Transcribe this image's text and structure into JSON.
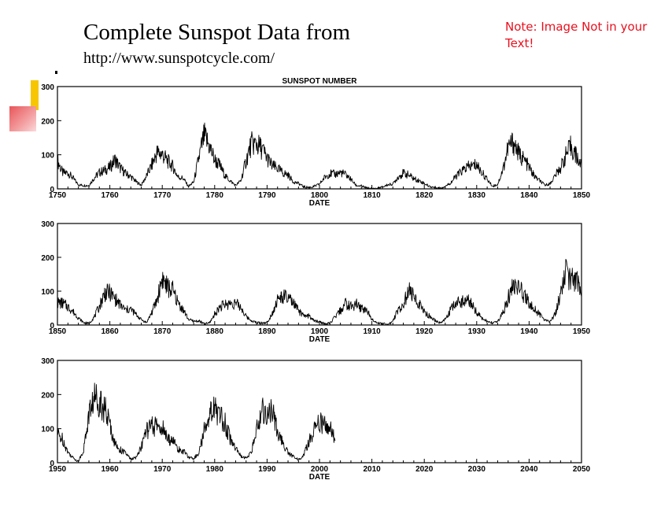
{
  "slide": {
    "title": "Complete Sunspot Data from",
    "url": "http://www.sunspotcycle.com/",
    "note": "Note: Image Not in your Text!"
  },
  "colors": {
    "note": "#e8101e",
    "accent_yellow": "#f7c600",
    "accent_red": "#e8565a",
    "line": "#000000"
  },
  "chart_data": [
    {
      "type": "line",
      "title": "SUNSPOT NUMBER",
      "xlabel": "DATE",
      "ylabel": "",
      "xlim": [
        1750,
        1850
      ],
      "ylim": [
        0,
        300
      ],
      "xticks": [
        "1750",
        "1760",
        "1770",
        "1780",
        "1790",
        "1800",
        "1810",
        "1820",
        "1830",
        "1840",
        "1850"
      ],
      "yticks": [
        "0",
        "100",
        "200",
        "300"
      ],
      "grid": false,
      "series": [
        {
          "x": [
            1750,
            1751,
            1752,
            1753,
            1754,
            1755,
            1756,
            1757,
            1758,
            1759,
            1760,
            1761,
            1762,
            1763,
            1764,
            1765,
            1766,
            1767,
            1768,
            1769,
            1770,
            1771,
            1772,
            1773,
            1774,
            1775,
            1776,
            1777,
            1778,
            1779,
            1780,
            1781,
            1782,
            1783,
            1784,
            1785,
            1786,
            1787,
            1788,
            1789,
            1790,
            1791,
            1792,
            1793,
            1794,
            1795,
            1796,
            1797,
            1798,
            1799,
            1800,
            1801,
            1802,
            1803,
            1804,
            1805,
            1806,
            1807,
            1808,
            1809,
            1810,
            1811,
            1812,
            1813,
            1814,
            1815,
            1816,
            1817,
            1818,
            1819,
            1820,
            1821,
            1822,
            1823,
            1824,
            1825,
            1826,
            1827,
            1828,
            1829,
            1830,
            1831,
            1832,
            1833,
            1834,
            1835,
            1836,
            1837,
            1838,
            1839,
            1840,
            1841,
            1842,
            1843,
            1844,
            1845,
            1846,
            1847,
            1848,
            1849,
            1850
          ],
          "y": [
            83,
            47,
            47,
            31,
            12,
            10,
            10,
            32,
            48,
            54,
            63,
            86,
            61,
            45,
            36,
            21,
            11,
            38,
            70,
            106,
            101,
            82,
            66,
            35,
            31,
            7,
            20,
            92,
            155,
            125,
            85,
            68,
            38,
            23,
            10,
            24,
            83,
            132,
            131,
            118,
            90,
            67,
            60,
            47,
            41,
            21,
            16,
            6,
            4,
            7,
            14,
            34,
            45,
            43,
            48,
            42,
            28,
            10,
            8,
            2,
            0,
            1,
            5,
            12,
            14,
            35,
            46,
            41,
            30,
            24,
            16,
            7,
            4,
            2,
            8,
            17,
            36,
            50,
            62,
            67,
            71,
            48,
            28,
            8,
            13,
            57,
            122,
            138,
            103,
            86,
            63,
            37,
            24,
            11,
            15,
            40,
            62,
            98,
            124,
            96,
            66
          ]
        }
      ]
    },
    {
      "type": "line",
      "title": "",
      "xlabel": "DATE",
      "ylabel": "",
      "xlim": [
        1850,
        1950
      ],
      "ylim": [
        0,
        300
      ],
      "xticks": [
        "1850",
        "1860",
        "1870",
        "1880",
        "1890",
        "1900",
        "1910",
        "1920",
        "1930",
        "1940",
        "1950"
      ],
      "yticks": [
        "0",
        "100",
        "200",
        "300"
      ],
      "grid": false,
      "series": [
        {
          "x": [
            1850,
            1851,
            1852,
            1853,
            1854,
            1855,
            1856,
            1857,
            1858,
            1859,
            1860,
            1861,
            1862,
            1863,
            1864,
            1865,
            1866,
            1867,
            1868,
            1869,
            1870,
            1871,
            1872,
            1873,
            1874,
            1875,
            1876,
            1877,
            1878,
            1879,
            1880,
            1881,
            1882,
            1883,
            1884,
            1885,
            1886,
            1887,
            1888,
            1889,
            1890,
            1891,
            1892,
            1893,
            1894,
            1895,
            1896,
            1897,
            1898,
            1899,
            1900,
            1901,
            1902,
            1903,
            1904,
            1905,
            1906,
            1907,
            1908,
            1909,
            1910,
            1911,
            1912,
            1913,
            1914,
            1915,
            1916,
            1917,
            1918,
            1919,
            1920,
            1921,
            1922,
            1923,
            1924,
            1925,
            1926,
            1927,
            1928,
            1929,
            1930,
            1931,
            1932,
            1933,
            1934,
            1935,
            1936,
            1937,
            1938,
            1939,
            1940,
            1941,
            1942,
            1943,
            1944,
            1945,
            1946,
            1947,
            1948,
            1949,
            1950
          ],
          "y": [
            66,
            64,
            54,
            39,
            21,
            7,
            4,
            23,
            55,
            94,
            96,
            77,
            59,
            44,
            47,
            31,
            16,
            7,
            37,
            74,
            139,
            111,
            102,
            66,
            45,
            17,
            11,
            12,
            3,
            6,
            32,
            54,
            60,
            64,
            64,
            52,
            25,
            13,
            7,
            6,
            7,
            36,
            73,
            85,
            78,
            64,
            42,
            26,
            27,
            12,
            10,
            3,
            5,
            24,
            42,
            63,
            54,
            62,
            49,
            44,
            19,
            6,
            4,
            1,
            10,
            47,
            57,
            104,
            81,
            64,
            38,
            26,
            14,
            6,
            17,
            44,
            64,
            69,
            78,
            65,
            36,
            21,
            11,
            6,
            9,
            36,
            80,
            114,
            110,
            89,
            68,
            48,
            31,
            16,
            10,
            33,
            93,
            152,
            136,
            135,
            84
          ]
        }
      ]
    },
    {
      "type": "line",
      "title": "",
      "xlabel": "DATE",
      "ylabel": "",
      "xlim": [
        1950,
        2050
      ],
      "ylim": [
        0,
        300
      ],
      "xticks": [
        "1950",
        "1960",
        "1970",
        "1980",
        "1990",
        "2000",
        "2010",
        "2020",
        "2030",
        "2040",
        "2050"
      ],
      "yticks": [
        "0",
        "100",
        "200",
        "300"
      ],
      "grid": false,
      "series": [
        {
          "x": [
            1950,
            1951,
            1952,
            1953,
            1954,
            1955,
            1956,
            1957,
            1958,
            1959,
            1960,
            1961,
            1962,
            1963,
            1964,
            1965,
            1966,
            1967,
            1968,
            1969,
            1970,
            1971,
            1972,
            1973,
            1974,
            1975,
            1976,
            1977,
            1978,
            1979,
            1980,
            1981,
            1982,
            1983,
            1984,
            1985,
            1986,
            1987,
            1988,
            1989,
            1990,
            1991,
            1992,
            1993,
            1994,
            1995,
            1996,
            1997,
            1998,
            1999,
            2000,
            2001,
            2002,
            2003
          ],
          "y": [
            84,
            69,
            31,
            14,
            4,
            38,
            142,
            190,
            185,
            159,
            112,
            54,
            38,
            28,
            10,
            15,
            47,
            94,
            106,
            106,
            105,
            67,
            69,
            38,
            35,
            16,
            13,
            28,
            93,
            155,
            155,
            140,
            116,
            67,
            46,
            18,
            14,
            29,
            100,
            158,
            142,
            146,
            94,
            55,
            30,
            18,
            9,
            21,
            64,
            93,
            120,
            111,
            104,
            64
          ]
        }
      ]
    }
  ]
}
